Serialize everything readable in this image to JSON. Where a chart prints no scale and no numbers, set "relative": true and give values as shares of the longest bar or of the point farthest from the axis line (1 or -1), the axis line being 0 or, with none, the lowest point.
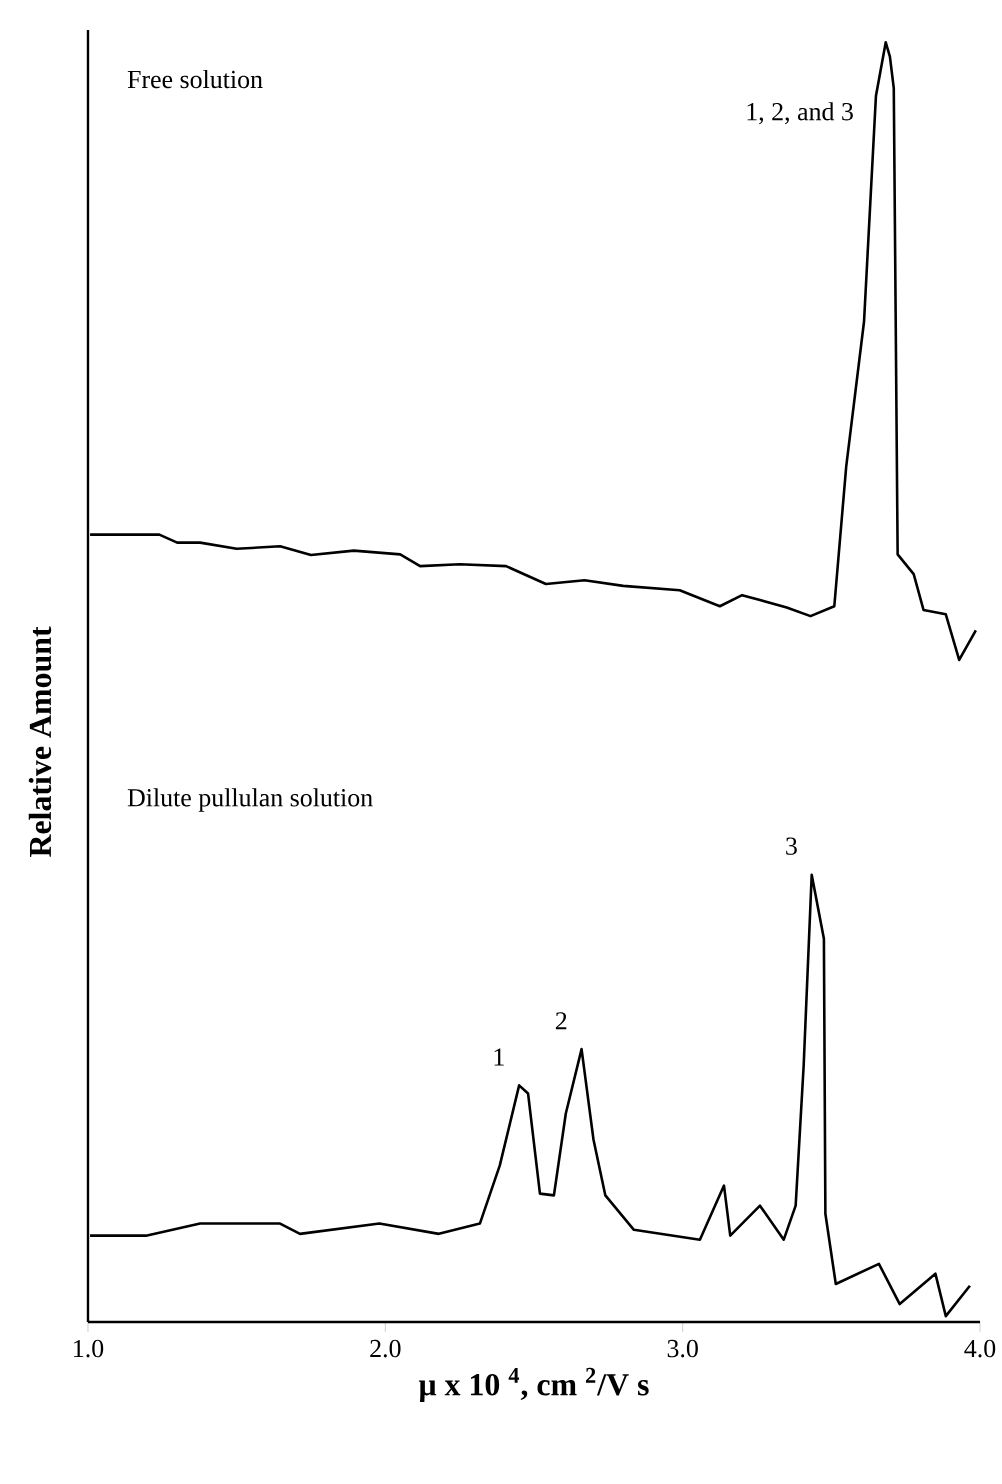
{
  "chart_data": [
    {
      "type": "line",
      "title": "Free solution",
      "ylabel": "Relative Amount",
      "relative": true,
      "xlim": [
        1,
        4
      ],
      "tick_labels": false,
      "series": [
        {
          "color": "#000000",
          "x": [
            1.007,
            1.24,
            1.3,
            1.377,
            1.5,
            1.646,
            1.75,
            1.894,
            2.05,
            2.117,
            2.25,
            2.406,
            2.54,
            2.67,
            2.8,
            2.99,
            3.125,
            3.2,
            3.26,
            3.35,
            3.43,
            3.51,
            3.55,
            3.61,
            3.65,
            3.683,
            3.697,
            3.71,
            3.723,
            3.777,
            3.81,
            3.885,
            3.93,
            3.986
          ],
          "values": [
            0.203,
            0.203,
            0.19,
            0.19,
            0.18,
            0.184,
            0.17,
            0.177,
            0.171,
            0.152,
            0.155,
            0.152,
            0.123,
            0.129,
            0.12,
            0.113,
            0.087,
            0.105,
            0.097,
            0.085,
            0.071,
            0.087,
            0.313,
            0.548,
            0.913,
            1.0,
            0.977,
            0.926,
            0.171,
            0.139,
            0.081,
            0.074,
            0.0,
            0.048
          ]
        }
      ],
      "annotations": [
        {
          "text": "1, 2, and 3",
          "x": 3.683,
          "y": 1.0
        }
      ]
    },
    {
      "type": "line",
      "title": "Dilute pullulan solution",
      "xlabel": "μ x 10 $^{4}$, cm $^{2}$/V s",
      "relative": true,
      "xlim": [
        1,
        4
      ],
      "xticks": [
        {
          "value": 1,
          "label": "1.0"
        },
        {
          "value": 2,
          "label": "2.0"
        },
        {
          "value": 3,
          "label": "3.0"
        },
        {
          "value": 4,
          "label": "4.0"
        }
      ],
      "tick_labels": "x",
      "series": [
        {
          "color": "#000000",
          "x": [
            1.007,
            1.195,
            1.377,
            1.646,
            1.713,
            1.98,
            2.18,
            2.318,
            2.385,
            2.45,
            2.48,
            2.52,
            2.567,
            2.607,
            2.66,
            2.7,
            2.74,
            2.836,
            3.058,
            3.139,
            3.16,
            3.26,
            3.34,
            3.38,
            3.407,
            3.434,
            3.475,
            3.48,
            3.515,
            3.66,
            3.73,
            3.85,
            3.885,
            3.966
          ],
          "values": [
            0.193,
            0.193,
            0.22,
            0.22,
            0.197,
            0.22,
            0.197,
            0.22,
            0.35,
            0.529,
            0.511,
            0.287,
            0.283,
            0.466,
            0.61,
            0.408,
            0.283,
            0.206,
            0.184,
            0.305,
            0.193,
            0.26,
            0.184,
            0.26,
            0.574,
            1.0,
            0.857,
            0.242,
            0.085,
            0.13,
            0.04,
            0.108,
            0.013,
            0.081
          ]
        }
      ],
      "annotations": [
        {
          "text": "1",
          "x": 2.45,
          "y": 0.529
        },
        {
          "text": "2",
          "x": 2.66,
          "y": 0.61
        },
        {
          "text": "3",
          "x": 3.434,
          "y": 1.0
        }
      ]
    }
  ]
}
